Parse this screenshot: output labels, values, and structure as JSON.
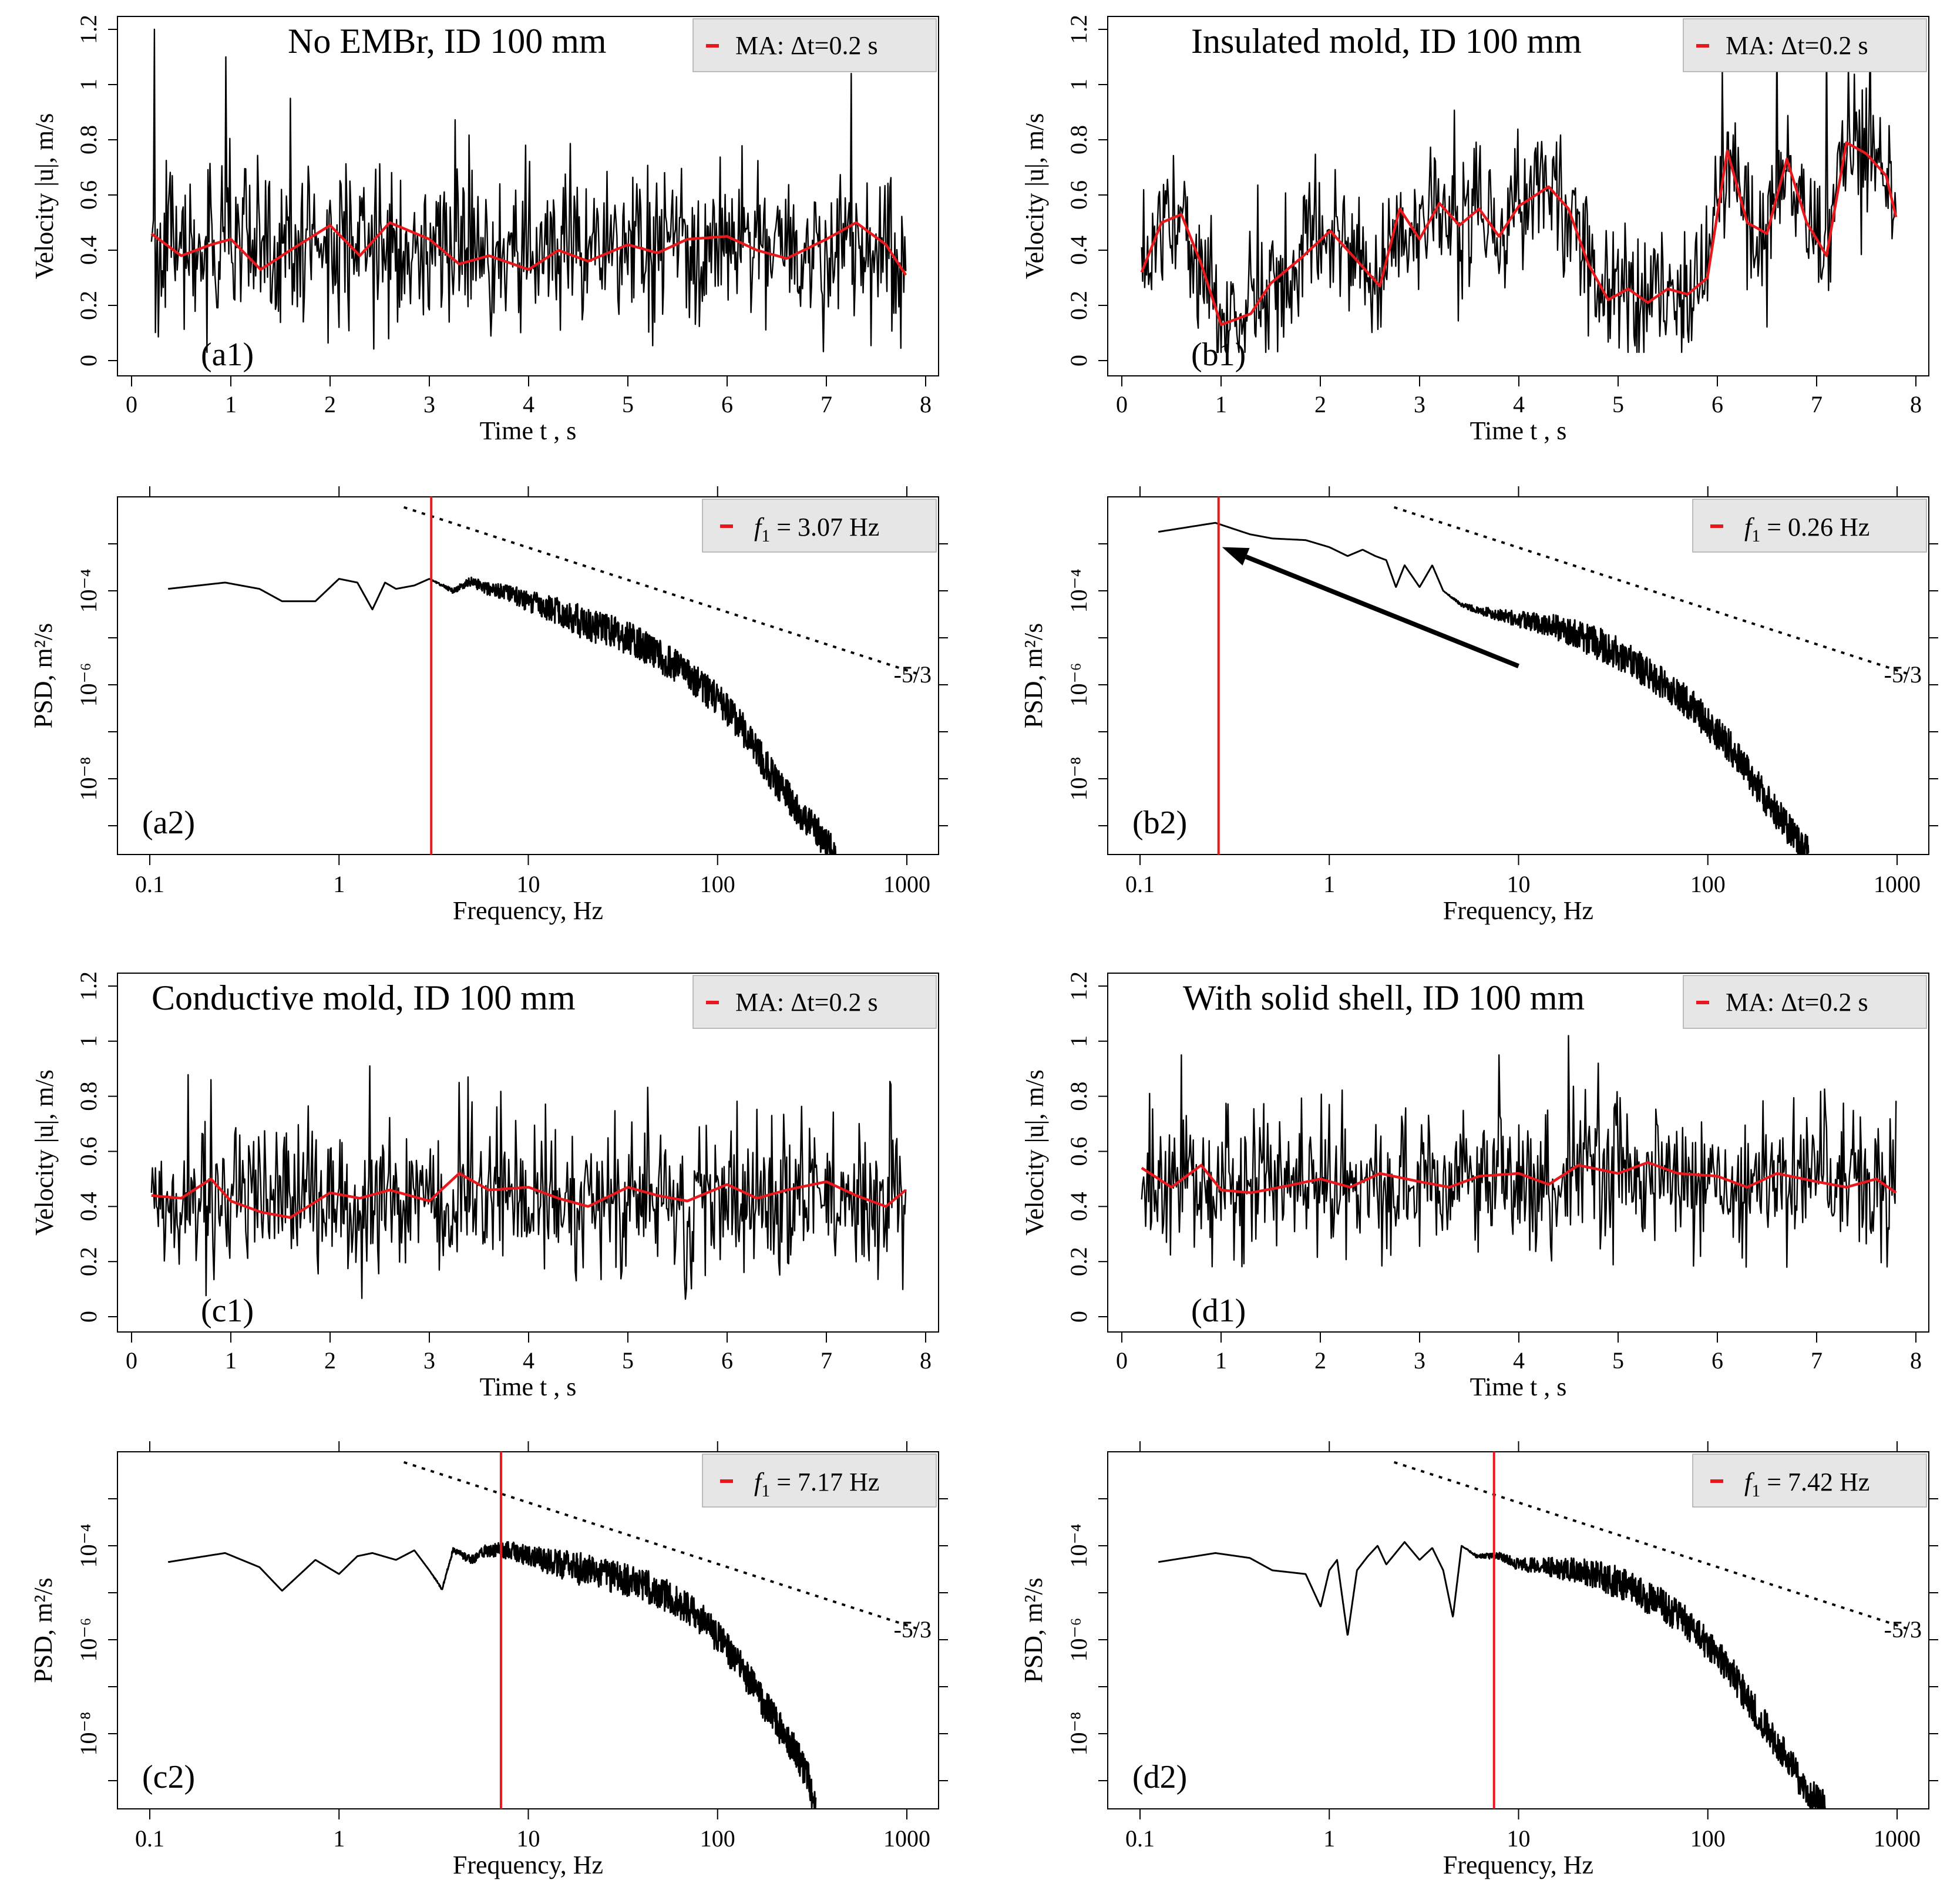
{
  "colors": {
    "signal": "#000000",
    "moving_average": "#e8191c",
    "f1_line": "#e8191c",
    "legend_bg": "#e6e6e6",
    "slope_line": "#000000"
  },
  "chart_data": [
    {
      "id": "a1",
      "type": "line",
      "tag": "(a1)",
      "title": "No EMBr, ID 100 mm",
      "legend": "MA:  Δt=0.2 s",
      "xlabel": "Time  t , s",
      "ylabel": "Velocity |u|, m/s",
      "xlim": [
        0,
        8
      ],
      "ylim": [
        0,
        1.2
      ],
      "xticks": [
        "0",
        "1",
        "2",
        "3",
        "4",
        "5",
        "6",
        "7",
        "8"
      ],
      "yticks": [
        "0",
        "0.2",
        "0.4",
        "0.6",
        "0.8",
        "1",
        "1.2"
      ],
      "signal": {
        "t_range": [
          0.2,
          7.8
        ],
        "mean": 0.4,
        "spread": 0.14,
        "peaks": [
          [
            0.23,
            1.22
          ],
          [
            0.95,
            1.1
          ],
          [
            7.25,
            1.04
          ],
          [
            1.6,
            0.95
          ]
        ]
      },
      "series": [
        {
          "name": "MA:  Δt=0.2 s",
          "x": [
            0.2,
            0.5,
            0.8,
            1.0,
            1.3,
            1.6,
            2.0,
            2.3,
            2.6,
            3.0,
            3.3,
            3.6,
            4.0,
            4.3,
            4.6,
            5.0,
            5.3,
            5.6,
            6.0,
            6.3,
            6.6,
            7.0,
            7.3,
            7.6,
            7.8
          ],
          "y": [
            0.46,
            0.38,
            0.42,
            0.44,
            0.33,
            0.4,
            0.49,
            0.38,
            0.5,
            0.44,
            0.35,
            0.38,
            0.33,
            0.4,
            0.36,
            0.42,
            0.39,
            0.44,
            0.45,
            0.4,
            0.37,
            0.44,
            0.5,
            0.42,
            0.31
          ]
        }
      ]
    },
    {
      "id": "b1",
      "type": "line",
      "tag": "(b1)",
      "title": "Insulated mold, ID 100 mm",
      "legend": "MA:  Δt=0.2 s",
      "xlabel": "Time  t , s",
      "ylabel": "Velocity |u|, m/s",
      "xlim": [
        0,
        8
      ],
      "ylim": [
        0,
        1.2
      ],
      "xticks": [
        "0",
        "1",
        "2",
        "3",
        "4",
        "5",
        "6",
        "7",
        "8"
      ],
      "yticks": [
        "0",
        "0.2",
        "0.4",
        "0.6",
        "0.8",
        "1",
        "1.2"
      ],
      "signal": {
        "t_range": [
          0.2,
          7.8
        ],
        "mean": 0.4,
        "spread": 0.12,
        "follow_ma": true,
        "peaks": [
          [
            6.6,
            1.2
          ],
          [
            7.1,
            1.17
          ],
          [
            6.05,
            1.05
          ]
        ]
      },
      "series": [
        {
          "name": "MA:  Δt=0.2 s",
          "x": [
            0.2,
            0.4,
            0.6,
            0.8,
            1.0,
            1.3,
            1.5,
            1.8,
            2.1,
            2.4,
            2.6,
            2.8,
            3.0,
            3.2,
            3.4,
            3.6,
            3.8,
            4.0,
            4.3,
            4.5,
            4.7,
            4.9,
            5.1,
            5.3,
            5.5,
            5.7,
            5.9,
            6.1,
            6.3,
            6.5,
            6.7,
            6.9,
            7.1,
            7.3,
            7.5,
            7.7,
            7.8
          ],
          "y": [
            0.32,
            0.5,
            0.53,
            0.35,
            0.13,
            0.17,
            0.28,
            0.37,
            0.47,
            0.35,
            0.27,
            0.55,
            0.44,
            0.57,
            0.49,
            0.55,
            0.45,
            0.56,
            0.63,
            0.55,
            0.35,
            0.22,
            0.26,
            0.21,
            0.26,
            0.24,
            0.3,
            0.76,
            0.5,
            0.46,
            0.73,
            0.5,
            0.38,
            0.79,
            0.75,
            0.67,
            0.52
          ]
        }
      ]
    },
    {
      "id": "c1",
      "type": "line",
      "tag": "(c1)",
      "title": "Conductive mold,  ID 100 mm",
      "legend": "MA:  Δt=0.2 s",
      "xlabel": "Time  t , s",
      "ylabel": "Velocity |u|, m/s",
      "xlim": [
        0,
        8
      ],
      "ylim": [
        0,
        1.2
      ],
      "xticks": [
        "0",
        "1",
        "2",
        "3",
        "4",
        "5",
        "6",
        "7",
        "8"
      ],
      "yticks": [
        "0",
        "0.2",
        "0.4",
        "0.6",
        "0.8",
        "1",
        "1.2"
      ],
      "signal": {
        "t_range": [
          0.2,
          7.8
        ],
        "mean": 0.42,
        "spread": 0.13,
        "peaks": [
          [
            2.4,
            0.91
          ],
          [
            3.3,
            0.85
          ],
          [
            0.8,
            0.86
          ]
        ]
      },
      "series": [
        {
          "name": "MA:  Δt=0.2 s",
          "x": [
            0.2,
            0.5,
            0.8,
            1.0,
            1.3,
            1.6,
            2.0,
            2.3,
            2.6,
            3.0,
            3.3,
            3.6,
            4.0,
            4.3,
            4.6,
            5.0,
            5.3,
            5.6,
            6.0,
            6.3,
            6.6,
            7.0,
            7.3,
            7.6,
            7.8
          ],
          "y": [
            0.44,
            0.43,
            0.5,
            0.42,
            0.38,
            0.36,
            0.45,
            0.43,
            0.46,
            0.42,
            0.52,
            0.46,
            0.47,
            0.43,
            0.4,
            0.47,
            0.44,
            0.42,
            0.48,
            0.43,
            0.46,
            0.49,
            0.44,
            0.4,
            0.46
          ]
        }
      ]
    },
    {
      "id": "d1",
      "type": "line",
      "tag": "(d1)",
      "title": "With solid shell, ID 100 mm",
      "legend": "MA:  Δt=0.2 s",
      "xlabel": "Time  t , s",
      "ylabel": "Velocity |u|, m/s",
      "xlim": [
        0,
        8
      ],
      "ylim": [
        0,
        1.2
      ],
      "xticks": [
        "0",
        "1",
        "2",
        "3",
        "4",
        "5",
        "6",
        "7",
        "8"
      ],
      "yticks": [
        "0",
        "0.2",
        "0.4",
        "0.6",
        "0.8",
        "1",
        "1.2"
      ],
      "signal": {
        "t_range": [
          0.2,
          7.8
        ],
        "mean": 0.49,
        "spread": 0.13,
        "peaks": [
          [
            4.5,
            1.02
          ],
          [
            0.6,
            0.95
          ],
          [
            4.8,
            0.92
          ],
          [
            3.8,
            0.95
          ]
        ]
      },
      "series": [
        {
          "name": "MA:  Δt=0.2 s",
          "x": [
            0.2,
            0.5,
            0.8,
            1.0,
            1.3,
            1.6,
            2.0,
            2.3,
            2.6,
            3.0,
            3.3,
            3.6,
            4.0,
            4.3,
            4.6,
            5.0,
            5.3,
            5.6,
            6.0,
            6.3,
            6.6,
            7.0,
            7.3,
            7.6,
            7.8
          ],
          "y": [
            0.54,
            0.47,
            0.55,
            0.46,
            0.45,
            0.47,
            0.5,
            0.47,
            0.52,
            0.49,
            0.47,
            0.51,
            0.52,
            0.48,
            0.55,
            0.52,
            0.56,
            0.52,
            0.51,
            0.47,
            0.52,
            0.49,
            0.47,
            0.5,
            0.45
          ]
        }
      ]
    },
    {
      "id": "a2",
      "type": "line",
      "tag": "(a2)",
      "legend": "f 1  =  3.07  Hz",
      "legend_symbol": "f",
      "legend_sub": "1",
      "legend_value": "=  3.07  Hz",
      "xlabel": "Frequency, Hz",
      "ylabel": "PSD, m²/s",
      "xscale": "log",
      "yscale": "log",
      "xlim": [
        0.08,
        1200
      ],
      "ylim": [
        2.5e-10,
        0.006
      ],
      "xticks": [
        "0.1",
        "1",
        "10",
        "100",
        "1000"
      ],
      "yticks": [
        "10⁻⁴",
        "10⁻⁶",
        "10⁻⁸"
      ],
      "f1": 3.07,
      "slope_label": "-5/3",
      "slope_line": {
        "x": [
          2.2,
          1200
        ],
        "y": [
          0.006,
          1.6e-06
        ]
      },
      "series": [
        {
          "name": "PSD",
          "x": [
            0.125,
            0.25,
            0.38,
            0.5,
            0.75,
            1.0,
            1.25,
            1.5,
            1.75,
            2.0,
            2.5,
            3.0,
            4.0,
            5.0,
            6.0,
            8.0,
            10,
            15,
            20,
            30,
            40,
            60,
            80,
            100,
            130,
            160,
            200,
            250,
            300,
            350,
            400,
            420
          ],
          "y": [
            0.00011,
            0.00015,
            0.00011,
            6e-05,
            6e-05,
            0.00018,
            0.00015,
            4e-05,
            0.00015,
            0.00011,
            0.00013,
            0.00018,
            0.0001,
            0.00016,
            0.00011,
            9e-05,
            6e-05,
            3.5e-05,
            2e-05,
            1.2e-05,
            7e-06,
            2.5e-06,
            1e-06,
            5e-07,
            1.5e-07,
            4e-08,
            1e-08,
            3e-09,
            1.2e-09,
            6e-10,
            3e-10,
            2.5e-10
          ],
          "noise_from": 3.0,
          "noise_amp": 0.35
        }
      ]
    },
    {
      "id": "b2",
      "type": "line",
      "tag": "(b2)",
      "legend": "f 1  =  0.26  Hz",
      "legend_symbol": "f",
      "legend_sub": "1",
      "legend_value": "=  0.26  Hz",
      "xlabel": "Frequency, Hz",
      "ylabel": "PSD, m²/s",
      "xscale": "log",
      "yscale": "log",
      "xlim": [
        0.08,
        1200
      ],
      "ylim": [
        2.5e-10,
        0.006
      ],
      "xticks": [
        "0.1",
        "1",
        "10",
        "100",
        "1000"
      ],
      "yticks": [
        "10⁻⁴",
        "10⁻⁶",
        "10⁻⁸"
      ],
      "f1": 0.26,
      "slope_label": "-5/3",
      "slope_line": {
        "x": [
          2.2,
          1200
        ],
        "y": [
          0.006,
          1.6e-06
        ]
      },
      "arrow": {
        "from": [
          10,
          2.5e-06
        ],
        "to": [
          0.26,
          0.00085
        ]
      },
      "series": [
        {
          "name": "PSD",
          "x": [
            0.125,
            0.25,
            0.38,
            0.5,
            0.75,
            1.0,
            1.25,
            1.5,
            1.75,
            2.0,
            2.25,
            2.5,
            3.0,
            3.5,
            4.0,
            5.0,
            6.0,
            8.0,
            10,
            15,
            20,
            30,
            40,
            60,
            80,
            100,
            130,
            160,
            200,
            250,
            300,
            340
          ],
          "y": [
            0.0018,
            0.0028,
            0.0016,
            0.0013,
            0.0012,
            0.00085,
            0.00055,
            0.00075,
            0.00055,
            0.00045,
            0.00012,
            0.00035,
            0.00012,
            0.00035,
            0.0001,
            5e-05,
            4e-05,
            3e-05,
            2.5e-05,
            1.8e-05,
            1.2e-05,
            6e-06,
            3e-06,
            1e-06,
            4e-07,
            1.5e-07,
            5e-08,
            1.5e-08,
            4e-09,
            1.2e-09,
            5e-10,
            2.5e-10
          ],
          "noise_from": 4.0,
          "noise_amp": 0.35
        }
      ]
    },
    {
      "id": "c2",
      "type": "line",
      "tag": "(c2)",
      "legend": "f 1  =  7.17  Hz",
      "legend_symbol": "f",
      "legend_sub": "1",
      "legend_value": "=  7.17  Hz",
      "xlabel": "Frequency, Hz",
      "ylabel": "PSD, m²/s",
      "xscale": "log",
      "yscale": "log",
      "xlim": [
        0.08,
        1200
      ],
      "ylim": [
        2.5e-10,
        0.006
      ],
      "xticks": [
        "0.1",
        "1",
        "10",
        "100",
        "1000"
      ],
      "yticks": [
        "10⁻⁴",
        "10⁻⁶",
        "10⁻⁸"
      ],
      "f1": 7.17,
      "slope_label": "-5/3",
      "slope_line": {
        "x": [
          2.2,
          1200
        ],
        "y": [
          0.006,
          1.6e-06
        ]
      },
      "series": [
        {
          "name": "PSD",
          "x": [
            0.125,
            0.25,
            0.38,
            0.5,
            0.75,
            1.0,
            1.25,
            1.5,
            2.0,
            2.5,
            3.0,
            3.5,
            4.0,
            5.0,
            6.0,
            8.0,
            10,
            15,
            20,
            30,
            40,
            60,
            80,
            100,
            130,
            160,
            200,
            250,
            300,
            330
          ],
          "y": [
            4.5e-05,
            7e-05,
            3.5e-05,
            1.1e-05,
            5e-05,
            2.5e-05,
            6e-05,
            7e-05,
            5e-05,
            8e-05,
            3e-05,
            1.2e-05,
            8e-05,
            5e-05,
            8e-05,
            8e-05,
            6e-05,
            4e-05,
            3e-05,
            2e-05,
            1.5e-05,
            7e-06,
            3e-06,
            1.2e-06,
            3e-07,
            8e-08,
            2e-08,
            5e-09,
            1.2e-09,
            2.5e-10
          ],
          "noise_from": 3.0,
          "noise_amp": 0.35
        }
      ]
    },
    {
      "id": "d2",
      "type": "line",
      "tag": "(d2)",
      "legend": "f 1  =  7.42  Hz",
      "legend_symbol": "f",
      "legend_sub": "1",
      "legend_value": "=  7.42  Hz",
      "xlabel": "Frequency, Hz",
      "ylabel": "PSD, m²/s",
      "xscale": "log",
      "yscale": "log",
      "xlim": [
        0.08,
        1200
      ],
      "ylim": [
        2.5e-10,
        0.006
      ],
      "xticks": [
        "0.1",
        "1",
        "10",
        "100",
        "1000"
      ],
      "yticks": [
        "10⁻⁴",
        "10⁻⁶",
        "10⁻⁸"
      ],
      "f1": 7.42,
      "slope_label": "-5/3",
      "slope_line": {
        "x": [
          2.2,
          1200
        ],
        "y": [
          0.006,
          1.6e-06
        ]
      },
      "series": [
        {
          "name": "PSD",
          "x": [
            0.125,
            0.25,
            0.38,
            0.5,
            0.75,
            0.9,
            1.0,
            1.1,
            1.25,
            1.4,
            1.6,
            1.8,
            2.0,
            2.5,
            3.0,
            3.5,
            4.0,
            4.5,
            5.0,
            6.0,
            8.0,
            10,
            15,
            20,
            30,
            40,
            60,
            80,
            100,
            130,
            160,
            200,
            250,
            300,
            350,
            420
          ],
          "y": [
            4.5e-05,
            7e-05,
            5.5e-05,
            3e-05,
            2.5e-05,
            5e-06,
            3e-05,
            5e-05,
            1.2e-06,
            3e-05,
            6e-05,
            0.0001,
            4e-05,
            0.00012,
            5e-05,
            9e-05,
            3e-05,
            3e-06,
            0.0001,
            6e-05,
            6e-05,
            4e-05,
            3.5e-05,
            3e-05,
            2e-05,
            1.2e-05,
            5e-06,
            2e-06,
            8e-07,
            2.5e-07,
            6e-08,
            1.5e-08,
            4e-09,
            1.2e-09,
            5e-10,
            2.5e-10
          ],
          "noise_from": 5.0,
          "noise_amp": 0.35
        }
      ]
    }
  ]
}
